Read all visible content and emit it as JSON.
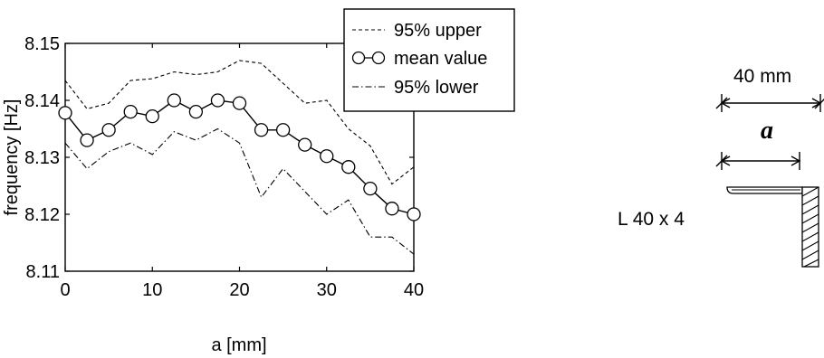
{
  "chart_data": {
    "type": "line",
    "xlabel": "a [mm]",
    "ylabel": "frequency [Hz]",
    "xlim": [
      0,
      40
    ],
    "ylim": [
      8.11,
      8.15
    ],
    "x_ticks": [
      "0",
      "10",
      "20",
      "30",
      "40"
    ],
    "y_ticks": [
      "8.11",
      "8.12",
      "8.13",
      "8.14",
      "8.15"
    ],
    "grid": false,
    "legend_position": "top-right",
    "x": [
      0,
      2.5,
      5,
      7.5,
      10,
      12.5,
      15,
      17.5,
      20,
      22.5,
      25,
      27.5,
      30,
      32.5,
      35,
      37.5,
      40
    ],
    "series": [
      {
        "name": "95% upper",
        "style": "dashed",
        "marker": "none",
        "values": [
          8.1435,
          8.1385,
          8.1395,
          8.1435,
          8.1438,
          8.145,
          8.1445,
          8.145,
          8.147,
          8.1465,
          8.143,
          8.1395,
          8.14,
          8.135,
          8.132,
          8.1253,
          8.1283
        ]
      },
      {
        "name": "mean value",
        "style": "solid",
        "marker": "circle",
        "values": [
          8.1378,
          8.133,
          8.1348,
          8.138,
          8.1372,
          8.14,
          8.138,
          8.14,
          8.1395,
          8.1348,
          8.1348,
          8.1322,
          8.1302,
          8.1283,
          8.1245,
          8.121,
          8.12
        ]
      },
      {
        "name": "95% lower",
        "style": "dashdot",
        "marker": "none",
        "values": [
          8.1325,
          8.128,
          8.131,
          8.1325,
          8.1305,
          8.1345,
          8.133,
          8.135,
          8.1325,
          8.123,
          8.128,
          8.124,
          8.12,
          8.1225,
          8.116,
          8.116,
          8.113
        ]
      }
    ]
  },
  "colors": {
    "ink": "#000000",
    "background": "#ffffff"
  },
  "section_sketch": {
    "profile_label": "L 40 x 4",
    "width_dimension": "40 mm",
    "position_symbol": "a"
  }
}
